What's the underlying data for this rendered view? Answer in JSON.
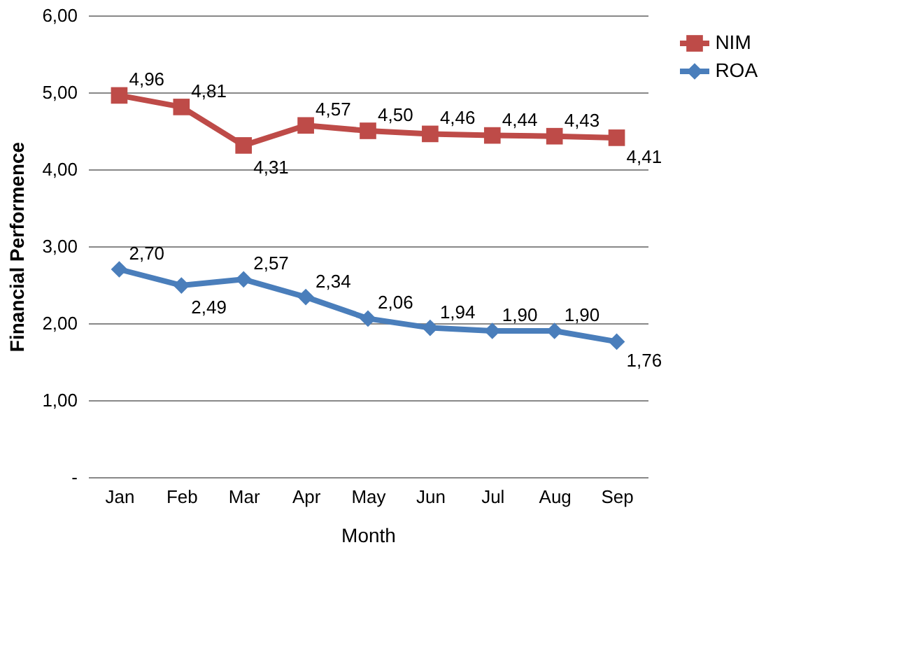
{
  "chart_data": {
    "type": "line",
    "xlabel": "Month",
    "ylabel": "Financial Performence",
    "categories": [
      "Jan",
      "Feb",
      "Mar",
      "Apr",
      "May",
      "Jun",
      "Jul",
      "Aug",
      "Sep"
    ],
    "series": [
      {
        "name": "ROA",
        "color": "#4a7ebb",
        "marker": "diamond",
        "values": [
          2.7,
          2.49,
          2.57,
          2.34,
          2.06,
          1.94,
          1.9,
          1.9,
          1.76
        ],
        "value_labels": [
          "2,70",
          "2,49",
          "2,57",
          "2,34",
          "2,06",
          "1,94",
          "1,90",
          "1,90",
          "1,76"
        ]
      },
      {
        "name": "NIM",
        "color": "#be4b48",
        "marker": "square",
        "values": [
          4.96,
          4.81,
          4.31,
          4.57,
          4.5,
          4.46,
          4.44,
          4.43,
          4.41
        ],
        "value_labels": [
          "4,96",
          "4,81",
          "4,31",
          "4,57",
          "4,50",
          "4,46",
          "4,44",
          "4,43",
          "4,41"
        ]
      }
    ],
    "ylim": [
      0,
      6
    ],
    "yticks": [
      {
        "value": 0,
        "label": "-"
      },
      {
        "value": 1,
        "label": "1,00"
      },
      {
        "value": 2,
        "label": "2,00"
      },
      {
        "value": 3,
        "label": "3,00"
      },
      {
        "value": 4,
        "label": "4,00"
      },
      {
        "value": 5,
        "label": "5,00"
      },
      {
        "value": 6,
        "label": "6,00"
      }
    ],
    "grid": "y",
    "legend": "right",
    "line_style": "solid"
  }
}
